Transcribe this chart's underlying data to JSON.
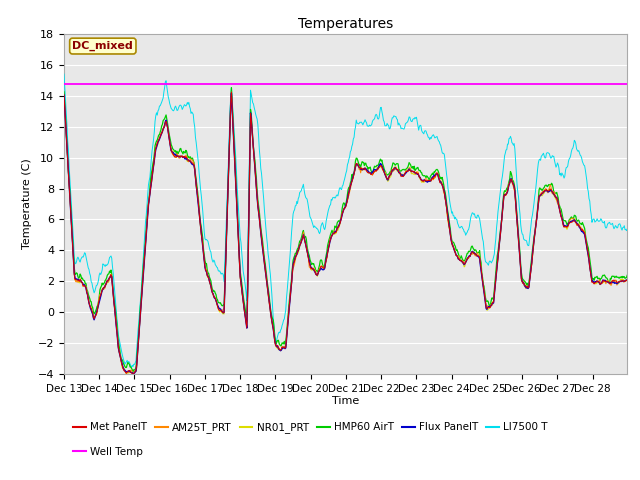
{
  "title": "Temperatures",
  "xlabel": "Time",
  "ylabel": "Temperature (C)",
  "ylim": [
    -4,
    18
  ],
  "yticks": [
    -4,
    -2,
    0,
    2,
    4,
    6,
    8,
    10,
    12,
    14,
    16,
    18
  ],
  "xtick_labels": [
    "Dec 13",
    "Dec 14",
    "Dec 15",
    "Dec 16",
    "Dec 17",
    "Dec 18",
    "Dec 19",
    "Dec 20",
    "Dec 21",
    "Dec 22",
    "Dec 23",
    "Dec 24",
    "Dec 25",
    "Dec 26",
    "Dec 27",
    "Dec 28"
  ],
  "well_temp": 14.75,
  "annotation_text": "DC_mixed",
  "bg_color": "#e8e8e8",
  "line_colors": {
    "Met PanelT": "#dd0000",
    "AM25T_PRT": "#ff8800",
    "NR01_PRT": "#dddd00",
    "HMP60 AirT": "#00cc00",
    "Flux PanelT": "#0000cc",
    "LI7500 T": "#00ddee",
    "Well Temp": "#ff00ff"
  },
  "legend_labels": [
    "Met PanelT",
    "AM25T_PRT",
    "NR01_PRT",
    "HMP60 AirT",
    "Flux PanelT",
    "LI7500 T",
    "Well Temp"
  ],
  "figsize": [
    6.4,
    4.8
  ],
  "dpi": 100
}
